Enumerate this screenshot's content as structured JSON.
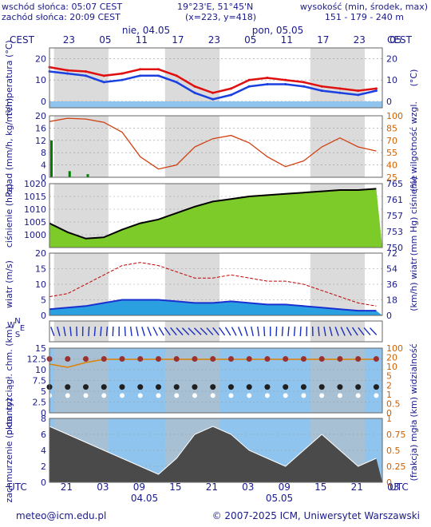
{
  "header": {
    "sunrise": "wschód słońca: 05:07 CEST",
    "sunset": "zachód słońca: 20:09 CEST",
    "coords": "19°23'E, 51°45'N",
    "grid": "(x=223,  y=418)",
    "height_title": "wysokość (min, środek, max)",
    "height_values": "151 - 179 - 240 m"
  },
  "timebar": {
    "left_tz": "CEST",
    "right_tz": "CEST",
    "day1": "nie, 04.05",
    "day2": "pon, 05.05",
    "top_ticks": [
      "23",
      "05",
      "11",
      "17",
      "23",
      "05",
      "11",
      "17",
      "23",
      "05"
    ],
    "bottom_ticks": [
      "21",
      "03",
      "09",
      "15",
      "21",
      "03",
      "09",
      "15",
      "21",
      "03"
    ],
    "bottom_tz_left": "UTC",
    "bottom_tz_right": "UTC",
    "bottom_day1": "04.05",
    "bottom_day2": "05.05"
  },
  "footer": {
    "email": "meteo@icm.edu.pl",
    "copyright": "© 2007-2025 ICM, Uniwersytet Warszawski"
  },
  "colors": {
    "text": "#1a1a8c",
    "night": "#d3d3d3",
    "temp": "#e01010",
    "feel": "#1a40e0",
    "rain": "#008000",
    "humidity": "#d04010",
    "pressure": "#000000",
    "wind": "#c00000",
    "visibility": "#e08000"
  },
  "chart_data": [
    {
      "type": "line",
      "panel": "temperature",
      "ylabel": "temperatura (°C)",
      "ylabel_right": "(°C)",
      "ylim": [
        -3,
        25
      ],
      "ticks": [
        0,
        10,
        20
      ],
      "x_hours_utc": [
        0,
        3,
        6,
        9,
        12,
        15,
        18,
        21,
        24,
        27,
        30,
        33,
        36,
        39,
        42,
        45,
        48,
        51,
        54
      ],
      "series": [
        {
          "name": "temperature",
          "values": [
            16,
            14.5,
            14,
            12,
            13,
            15,
            15,
            12,
            7,
            4,
            6,
            10,
            11,
            10,
            9,
            7,
            6,
            5,
            6
          ]
        },
        {
          "name": "perceived",
          "values": [
            14,
            13,
            12,
            9,
            10,
            12,
            12,
            9,
            4,
            1,
            3,
            7,
            8,
            8,
            7,
            5,
            4,
            3,
            5
          ]
        }
      ]
    },
    {
      "type": "line",
      "panel": "precip_humidity",
      "ylabel": "opad (mm/h, kg/m²/h)",
      "ylabel_right": "(%) wilgotność wzgl.",
      "ylim": [
        0,
        20
      ],
      "ticks": [
        0,
        4,
        8,
        12,
        16,
        20
      ],
      "right_ticks": [
        25,
        40,
        55,
        70,
        85,
        100
      ],
      "x_hours_utc": [
        0,
        3,
        6,
        9,
        12,
        15,
        18,
        21,
        24,
        27,
        30,
        33,
        36,
        39,
        42,
        45,
        48,
        51,
        54
      ],
      "series": [
        {
          "name": "humidity",
          "values": [
            93,
            97,
            96,
            92,
            80,
            50,
            35,
            40,
            62,
            72,
            76,
            67,
            50,
            38,
            45,
            62,
            73,
            62,
            57
          ]
        },
        {
          "name": "precipitation",
          "values": [
            12,
            2,
            1,
            0,
            0,
            0,
            0,
            0,
            0,
            0,
            0,
            0,
            0,
            0,
            0,
            0,
            0,
            0,
            0
          ]
        }
      ]
    },
    {
      "type": "area",
      "panel": "pressure",
      "ylabel": "ciśnienie (hPa)",
      "ylabel_right": "(mm Hg) ciśnienie",
      "ylim": [
        995,
        1020
      ],
      "ticks": [
        1000,
        1005,
        1010,
        1015,
        1020
      ],
      "right_ticks": [
        750,
        753,
        757,
        761,
        765
      ],
      "x_hours_utc": [
        0,
        3,
        6,
        9,
        12,
        15,
        18,
        21,
        24,
        27,
        30,
        33,
        36,
        39,
        42,
        45,
        48,
        51,
        54
      ],
      "series": [
        {
          "name": "pressure",
          "values": [
            1004.5,
            1001,
            998.5,
            999,
            1002,
            1004.5,
            1006,
            1008.5,
            1011,
            1013,
            1014,
            1015,
            1015.5,
            1016,
            1016.5,
            1017,
            1017.5,
            1017.5,
            1018
          ]
        }
      ]
    },
    {
      "type": "line",
      "panel": "wind",
      "ylabel": "wiatr (m/s)",
      "ylabel_right": "(km/h) wiatr",
      "ylim": [
        0,
        20
      ],
      "ticks": [
        0,
        5,
        10,
        15,
        20
      ],
      "right_ticks": [
        0,
        18,
        36,
        54,
        72
      ],
      "x_hours_utc": [
        0,
        3,
        6,
        9,
        12,
        15,
        18,
        21,
        24,
        27,
        30,
        33,
        36,
        39,
        42,
        45,
        48,
        51,
        54
      ],
      "series": [
        {
          "name": "gusts",
          "values": [
            6,
            7,
            10,
            13,
            16,
            17,
            16,
            14,
            12,
            12,
            13,
            12,
            11,
            11,
            10,
            8,
            6,
            4,
            3
          ]
        },
        {
          "name": "speed",
          "values": [
            2,
            2.5,
            3,
            4,
            5,
            5,
            5,
            4.5,
            4,
            4,
            4.5,
            4,
            3.5,
            3.5,
            3,
            2.5,
            2,
            1.5,
            1.5
          ]
        }
      ]
    },
    {
      "type": "scatter",
      "panel": "cloud_visibility",
      "ylabel": "pion. rozciągł. chm. (km)",
      "ylabel_right": "(km) widzialność",
      "ylim": [
        0,
        15
      ],
      "ticks": [
        0,
        2.5,
        5,
        7.5,
        10,
        12.5,
        15
      ],
      "right_ticks": [
        0,
        0.5,
        1,
        2,
        5,
        10,
        20,
        100
      ],
      "x_hours_utc": [
        0,
        3,
        6,
        9,
        12,
        15,
        18,
        21,
        24,
        27,
        30,
        33,
        36,
        39,
        42,
        45,
        48,
        51,
        54
      ],
      "series": [
        {
          "name": "visibility",
          "values": [
            7,
            5,
            8,
            10,
            10,
            10,
            10,
            10,
            10,
            10,
            10,
            10,
            10,
            10,
            10,
            10,
            10,
            10,
            10
          ]
        }
      ]
    },
    {
      "type": "area",
      "panel": "cloud_fog",
      "ylabel": "zachmurzenie (oktanty)",
      "ylabel_right": "(frakcja) mgła",
      "ylim": [
        0,
        8
      ],
      "ticks": [
        0,
        2,
        4,
        6,
        8
      ],
      "right_ticks": [
        0,
        0.25,
        0.5,
        0.75,
        1
      ],
      "x_hours_utc": [
        0,
        3,
        6,
        9,
        12,
        15,
        18,
        21,
        24,
        27,
        30,
        33,
        36,
        39,
        42,
        45,
        48,
        51,
        54
      ],
      "series": [
        {
          "name": "cloud",
          "values": [
            7,
            6,
            5,
            4,
            3,
            2,
            1,
            3,
            6,
            7,
            6,
            4,
            3,
            2,
            4,
            6,
            4,
            2,
            3
          ]
        }
      ]
    }
  ]
}
